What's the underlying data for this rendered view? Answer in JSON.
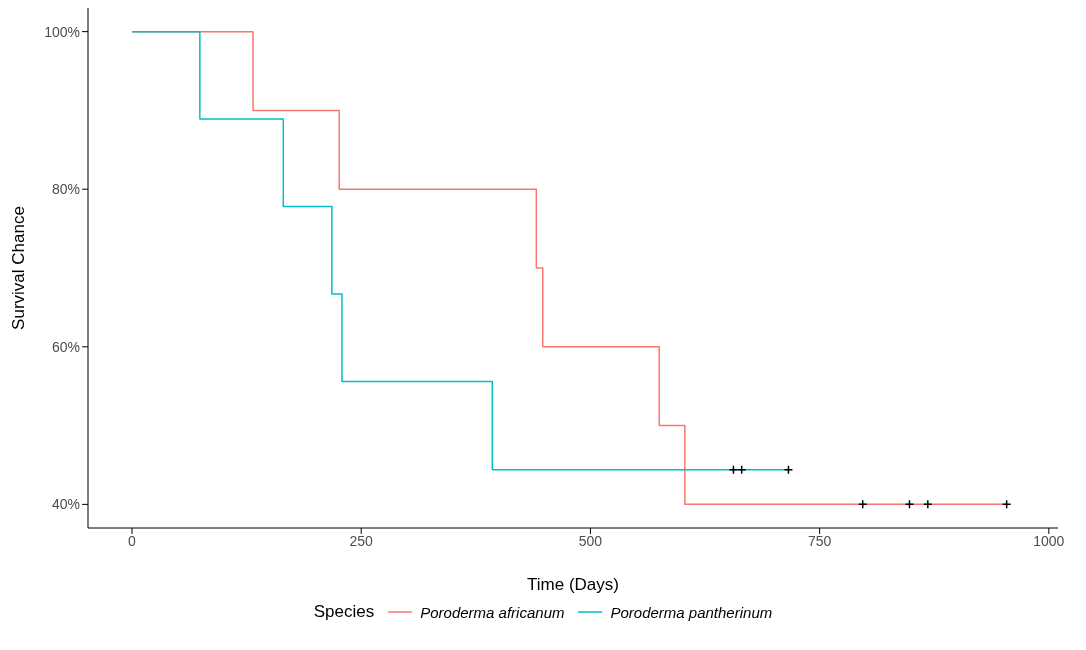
{
  "chart_data": {
    "type": "step",
    "xlabel": "Time (Days)",
    "ylabel": "Survival Chance",
    "legend_title": "Species",
    "legend": "bottom",
    "grid": false,
    "xlim": [
      -48,
      1010
    ],
    "xticks": [
      0,
      250,
      500,
      750,
      1000
    ],
    "ylim": [
      37,
      103
    ],
    "yticks": [
      {
        "value": 40,
        "label": "40%"
      },
      {
        "value": 60,
        "label": "60%"
      },
      {
        "value": 80,
        "label": "80%"
      },
      {
        "value": 100,
        "label": "100%"
      }
    ],
    "series": [
      {
        "name": "Poroderma africanum",
        "color": "#f8766d",
        "x": [
          0,
          132,
          226,
          441,
          448,
          575,
          603,
          954
        ],
        "values": [
          100,
          90,
          80,
          70,
          60,
          50,
          40,
          40
        ]
      },
      {
        "name": "Poroderma pantherinum",
        "color": "#00bfc4",
        "x": [
          0,
          74,
          165,
          218,
          229,
          393,
          716
        ],
        "values": [
          100,
          88.9,
          77.8,
          66.7,
          55.6,
          44.4,
          44.4
        ]
      },
      {
        "type": "scatter",
        "marker": "cross",
        "color": "#000000",
        "x": [
          797,
          848,
          868,
          954
        ],
        "values": [
          40,
          40,
          40,
          40
        ]
      },
      {
        "type": "scatter",
        "marker": "cross",
        "color": "#000000",
        "x": [
          656,
          665,
          716
        ],
        "values": [
          44.4,
          44.4,
          44.4
        ]
      }
    ]
  }
}
